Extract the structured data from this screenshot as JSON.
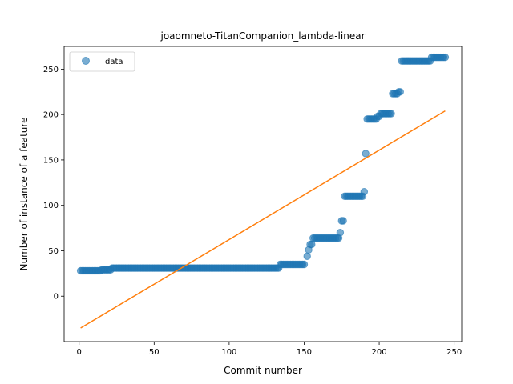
{
  "chart_data": {
    "type": "scatter",
    "title": "joaomneto-TitanCompanion_lambda-linear",
    "xlabel": "Commit number",
    "ylabel": "Number of instance of a feature",
    "xlim": [
      -10,
      255
    ],
    "ylim": [
      -50,
      275
    ],
    "xticks": [
      0,
      50,
      100,
      150,
      200,
      250
    ],
    "yticks": [
      0,
      50,
      100,
      150,
      200,
      250
    ],
    "grid": false,
    "legend": {
      "position": "top-left",
      "entries": [
        "data"
      ]
    },
    "colors": {
      "data": "#1f77b4",
      "fit": "#ff7f0e"
    },
    "series": [
      {
        "name": "data",
        "kind": "scatter",
        "segments": [
          {
            "x_from": 1,
            "x_to": 14,
            "y": 28
          },
          {
            "x_from": 15,
            "x_to": 21,
            "y": 29
          },
          {
            "x_from": 22,
            "x_to": 133,
            "y": 31
          },
          {
            "x_from": 134,
            "x_to": 150,
            "y": 35
          },
          {
            "x_from": 152,
            "x_to": 152,
            "y": 44
          },
          {
            "x_from": 153,
            "x_to": 153,
            "y": 51
          },
          {
            "x_from": 154,
            "x_to": 155,
            "y": 57
          },
          {
            "x_from": 156,
            "x_to": 173,
            "y": 64
          },
          {
            "x_from": 174,
            "x_to": 174,
            "y": 70
          },
          {
            "x_from": 175,
            "x_to": 176,
            "y": 83
          },
          {
            "x_from": 177,
            "x_to": 189,
            "y": 110
          },
          {
            "x_from": 190,
            "x_to": 190,
            "y": 115
          },
          {
            "x_from": 191,
            "x_to": 191,
            "y": 157
          },
          {
            "x_from": 192,
            "x_to": 198,
            "y": 195
          },
          {
            "x_from": 199,
            "x_to": 200,
            "y": 198
          },
          {
            "x_from": 201,
            "x_to": 208,
            "y": 201
          },
          {
            "x_from": 209,
            "x_to": 212,
            "y": 223
          },
          {
            "x_from": 213,
            "x_to": 214,
            "y": 225
          },
          {
            "x_from": 215,
            "x_to": 234,
            "y": 259
          },
          {
            "x_from": 235,
            "x_to": 244,
            "y": 263
          }
        ]
      },
      {
        "kind": "line",
        "x": [
          1,
          244
        ],
        "y": [
          -35,
          204
        ]
      }
    ]
  }
}
